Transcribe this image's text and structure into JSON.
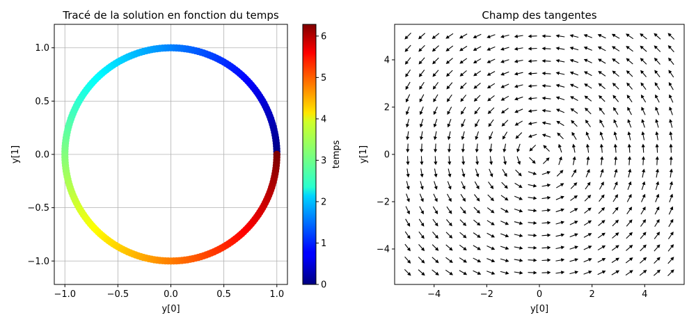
{
  "chart_data": [
    {
      "type": "scatter",
      "title": "Tracé de la solution en fonction du temps",
      "xlabel": "y[0]",
      "ylabel": "y[1]",
      "xlim": [
        -1.1,
        1.1
      ],
      "ylim": [
        -1.22,
        1.22
      ],
      "xticks": [
        -1.0,
        -0.5,
        0.0,
        0.5,
        1.0
      ],
      "xtick_labels": [
        "−1.0",
        "−0.5",
        "0.0",
        "0.5",
        "1.0"
      ],
      "yticks": [
        -1.0,
        -0.5,
        0.0,
        0.5,
        1.0
      ],
      "ytick_labels": [
        "−1.0",
        "−0.5",
        "0.0",
        "0.5",
        "1.0"
      ],
      "grid": true,
      "series": {
        "x": "cos(t)",
        "y": "sin(t)",
        "t_range": [
          0,
          6.2832
        ],
        "points": 240,
        "colored_by": "temps"
      },
      "colorbar": {
        "label": "temps",
        "colormap": "jet",
        "range": [
          0,
          6.2832
        ],
        "ticks": [
          0,
          1,
          2,
          3,
          4,
          5,
          6
        ],
        "tick_labels": [
          "0",
          "1",
          "2",
          "3",
          "4",
          "5",
          "6"
        ]
      }
    },
    {
      "type": "quiver",
      "title": "Champ des tangentes",
      "xlabel": "y[0]",
      "ylabel": "y[1]",
      "xlim": [
        -5.5,
        5.5
      ],
      "ylim": [
        -5.5,
        5.5
      ],
      "xticks": [
        -4,
        -2,
        0,
        2,
        4
      ],
      "xtick_labels": [
        "−4",
        "−2",
        "0",
        "2",
        "4"
      ],
      "yticks": [
        -4,
        -2,
        0,
        2,
        4
      ],
      "ytick_labels": [
        "−4",
        "−2",
        "0",
        "2",
        "4"
      ],
      "grid": false,
      "field": {
        "u": "-y",
        "v": "x",
        "normalized": true,
        "grid_range": [
          -5,
          5
        ],
        "grid_count": 20
      }
    }
  ]
}
